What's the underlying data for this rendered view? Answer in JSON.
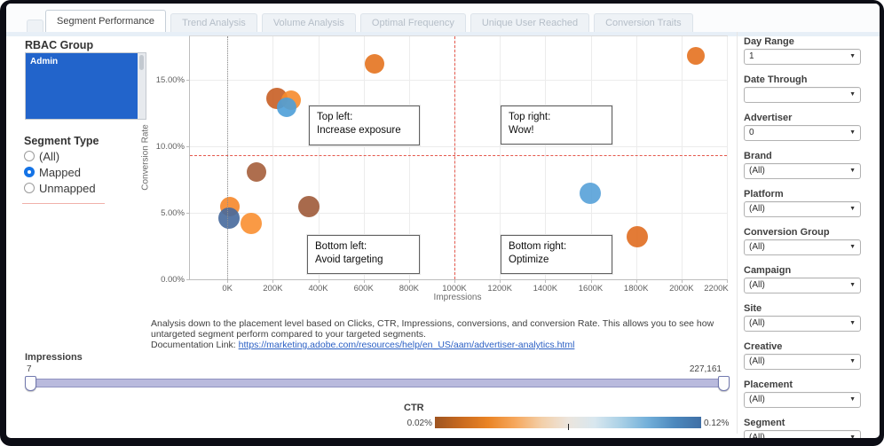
{
  "tabs": [
    {
      "label": "Segment Performance",
      "active": true
    },
    {
      "label": "Trend Analysis",
      "active": false
    },
    {
      "label": "Volume Analysis",
      "active": false
    },
    {
      "label": "Optimal Frequency",
      "active": false
    },
    {
      "label": "Unique User Reached",
      "active": false
    },
    {
      "label": "Conversion Traits",
      "active": false
    }
  ],
  "rbac": {
    "title": "RBAC Group",
    "selected_item": "Admin"
  },
  "segment_type": {
    "title": "Segment Type",
    "options": [
      {
        "label": "(All)",
        "selected": false
      },
      {
        "label": "Mapped",
        "selected": true
      },
      {
        "label": "Unmapped",
        "selected": false
      }
    ]
  },
  "chart_data": {
    "type": "scatter",
    "title": "",
    "xlabel": "Impressions",
    "ylabel": "Conversion Rate",
    "xlim_k": [
      -165,
      2200
    ],
    "ylim_pct": [
      0,
      18.3
    ],
    "grid": true,
    "x_ticks": [
      {
        "v": 0,
        "label": "0K"
      },
      {
        "v": 200,
        "label": "200K"
      },
      {
        "v": 400,
        "label": "400K"
      },
      {
        "v": 600,
        "label": "600K"
      },
      {
        "v": 800,
        "label": "800K"
      },
      {
        "v": 1000,
        "label": "1000K"
      },
      {
        "v": 1200,
        "label": "1200K"
      },
      {
        "v": 1400,
        "label": "1400K"
      },
      {
        "v": 1600,
        "label": "1600K"
      },
      {
        "v": 1800,
        "label": "1800K"
      },
      {
        "v": 2000,
        "label": "2000K"
      },
      {
        "v": 2200,
        "label": "2200K"
      }
    ],
    "y_ticks": [
      {
        "v": 0,
        "label": "0.00%"
      },
      {
        "v": 5,
        "label": "5.00%"
      },
      {
        "v": 10,
        "label": "10.00%"
      },
      {
        "v": 15,
        "label": "15.00%"
      }
    ],
    "points": [
      {
        "impressions_k": 650,
        "conversion_rate_pct": 16.2,
        "r": 11,
        "color": "#e4731f"
      },
      {
        "impressions_k": 218,
        "conversion_rate_pct": 13.6,
        "r": 12,
        "color": "#c85e23"
      },
      {
        "impressions_k": 282,
        "conversion_rate_pct": 13.5,
        "r": 11,
        "color": "#f68b2c"
      },
      {
        "impressions_k": 260,
        "conversion_rate_pct": 12.95,
        "r": 11,
        "color": "#4c9fd8"
      },
      {
        "impressions_k": 2065,
        "conversion_rate_pct": 16.8,
        "r": 10,
        "color": "#e4711f"
      },
      {
        "impressions_k": 128,
        "conversion_rate_pct": 8.1,
        "r": 11,
        "color": "#a55e3b"
      },
      {
        "impressions_k": 12,
        "conversion_rate_pct": 5.45,
        "r": 11,
        "color": "#f6872a"
      },
      {
        "impressions_k": 8,
        "conversion_rate_pct": 4.6,
        "r": 12,
        "color": "#46699c"
      },
      {
        "impressions_k": 103,
        "conversion_rate_pct": 4.2,
        "r": 12,
        "color": "#f98f31"
      },
      {
        "impressions_k": 357,
        "conversion_rate_pct": 5.5,
        "r": 12,
        "color": "#9e5a38"
      },
      {
        "impressions_k": 1598,
        "conversion_rate_pct": 6.5,
        "r": 12,
        "color": "#56a1d8"
      },
      {
        "impressions_k": 1805,
        "conversion_rate_pct": 3.2,
        "r": 12,
        "color": "#e06d20"
      }
    ],
    "ref_lines": [
      {
        "axis": "x",
        "value": 0,
        "style": "dotted",
        "color": "#909090"
      },
      {
        "axis": "x",
        "value": 1000,
        "style": "dashed",
        "color": "#e4584c"
      },
      {
        "axis": "y",
        "value": 9.35,
        "style": "dashed",
        "color": "#e4584c"
      }
    ],
    "annotations": [
      {
        "line1": "Top left:",
        "line2": "Increase exposure"
      },
      {
        "line1": "Top right:",
        "line2": "Wow!"
      },
      {
        "line1": "Bottom left:",
        "line2": "Avoid targeting"
      },
      {
        "line1": "Bottom right:",
        "line2": "Optimize"
      }
    ],
    "color_encoding": "CTR"
  },
  "description": {
    "text": "Analysis down to the placement level based on Clicks, CTR, Impressions, conversions, and conversion Rate. This allows you to see how untargeted segment perform compared to your targeted segments.",
    "link_label": "Documentation Link: ",
    "link_url": "https://marketing.adobe.com/resources/help/en_US/aam/advertiser-analytics.html"
  },
  "impressions_slider": {
    "title": "Impressions",
    "min": "7",
    "max": "227,161"
  },
  "ctr_legend": {
    "title": "CTR",
    "min": "0.02%",
    "max": "0.12%",
    "gradient": [
      "#9e5420",
      "#c96a1f",
      "#ea8425",
      "#f6a75c",
      "#f3cfa8",
      "#ece5dd",
      "#d8e7ef",
      "#a9d0e6",
      "#72afd9",
      "#4c88bd",
      "#3f6fa5"
    ]
  },
  "filters": [
    {
      "label": "Day Range",
      "value": "1"
    },
    {
      "label": "Date Through",
      "value": ""
    },
    {
      "label": "Advertiser",
      "value": "0"
    },
    {
      "label": "Brand",
      "value": "(All)"
    },
    {
      "label": "Platform",
      "value": "(All)"
    },
    {
      "label": "Conversion Group",
      "value": "(All)"
    },
    {
      "label": "Campaign",
      "value": "(All)"
    },
    {
      "label": "Site",
      "value": "(All)"
    },
    {
      "label": "Creative",
      "value": "(All)"
    },
    {
      "label": "Placement",
      "value": "(All)"
    },
    {
      "label": "Segment",
      "value": "(All)"
    }
  ],
  "colors": {
    "accent_blue": "#1473e6",
    "listbox_blue": "#2264cb",
    "slider_track": "#b9badd",
    "link": "#2a5fc4",
    "refline_red": "#e4584c"
  }
}
